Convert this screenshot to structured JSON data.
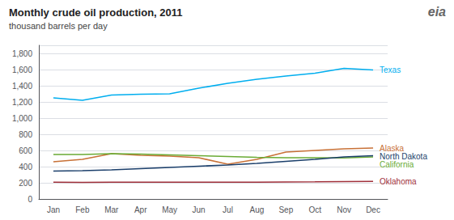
{
  "chart_data": {
    "type": "line",
    "title": "Monthly crude oil production, 2011",
    "subtitle": "thousand barrels per day",
    "annotations": [
      "eia"
    ],
    "categories": [
      "Jan",
      "Feb",
      "Mar",
      "Apr",
      "May",
      "Jun",
      "Jul",
      "Aug",
      "Sep",
      "Oct",
      "Nov",
      "Dec"
    ],
    "series": [
      {
        "name": "Texas",
        "color": "#00AEEF",
        "values": [
          1250,
          1220,
          1285,
          1295,
          1300,
          1370,
          1430,
          1480,
          1520,
          1555,
          1615,
          1595
        ]
      },
      {
        "name": "Alaska",
        "color": "#C87137",
        "values": [
          460,
          490,
          560,
          540,
          530,
          510,
          430,
          490,
          580,
          600,
          620,
          630
        ]
      },
      {
        "name": "California",
        "color": "#6AAB35",
        "values": [
          550,
          550,
          560,
          555,
          545,
          535,
          525,
          515,
          510,
          510,
          508,
          520
        ]
      },
      {
        "name": "North Dakota",
        "color": "#1B3F6B",
        "values": [
          345,
          350,
          360,
          375,
          390,
          405,
          420,
          440,
          465,
          490,
          520,
          535
        ]
      },
      {
        "name": "Oklahoma",
        "color": "#A0303A",
        "values": [
          207,
          205,
          207,
          207,
          207,
          207,
          207,
          208,
          210,
          212,
          215,
          218
        ]
      }
    ],
    "ylim": [
      0,
      1900
    ],
    "yticks": [
      0,
      200,
      400,
      600,
      800,
      {
        "value": 1000,
        "label": "1,000"
      },
      {
        "value": 1200,
        "label": "1,200"
      },
      {
        "value": 1400,
        "label": "1,400"
      },
      {
        "value": 1600,
        "label": "1,600"
      },
      {
        "value": 1800,
        "label": "1,800"
      }
    ],
    "grid": true
  }
}
